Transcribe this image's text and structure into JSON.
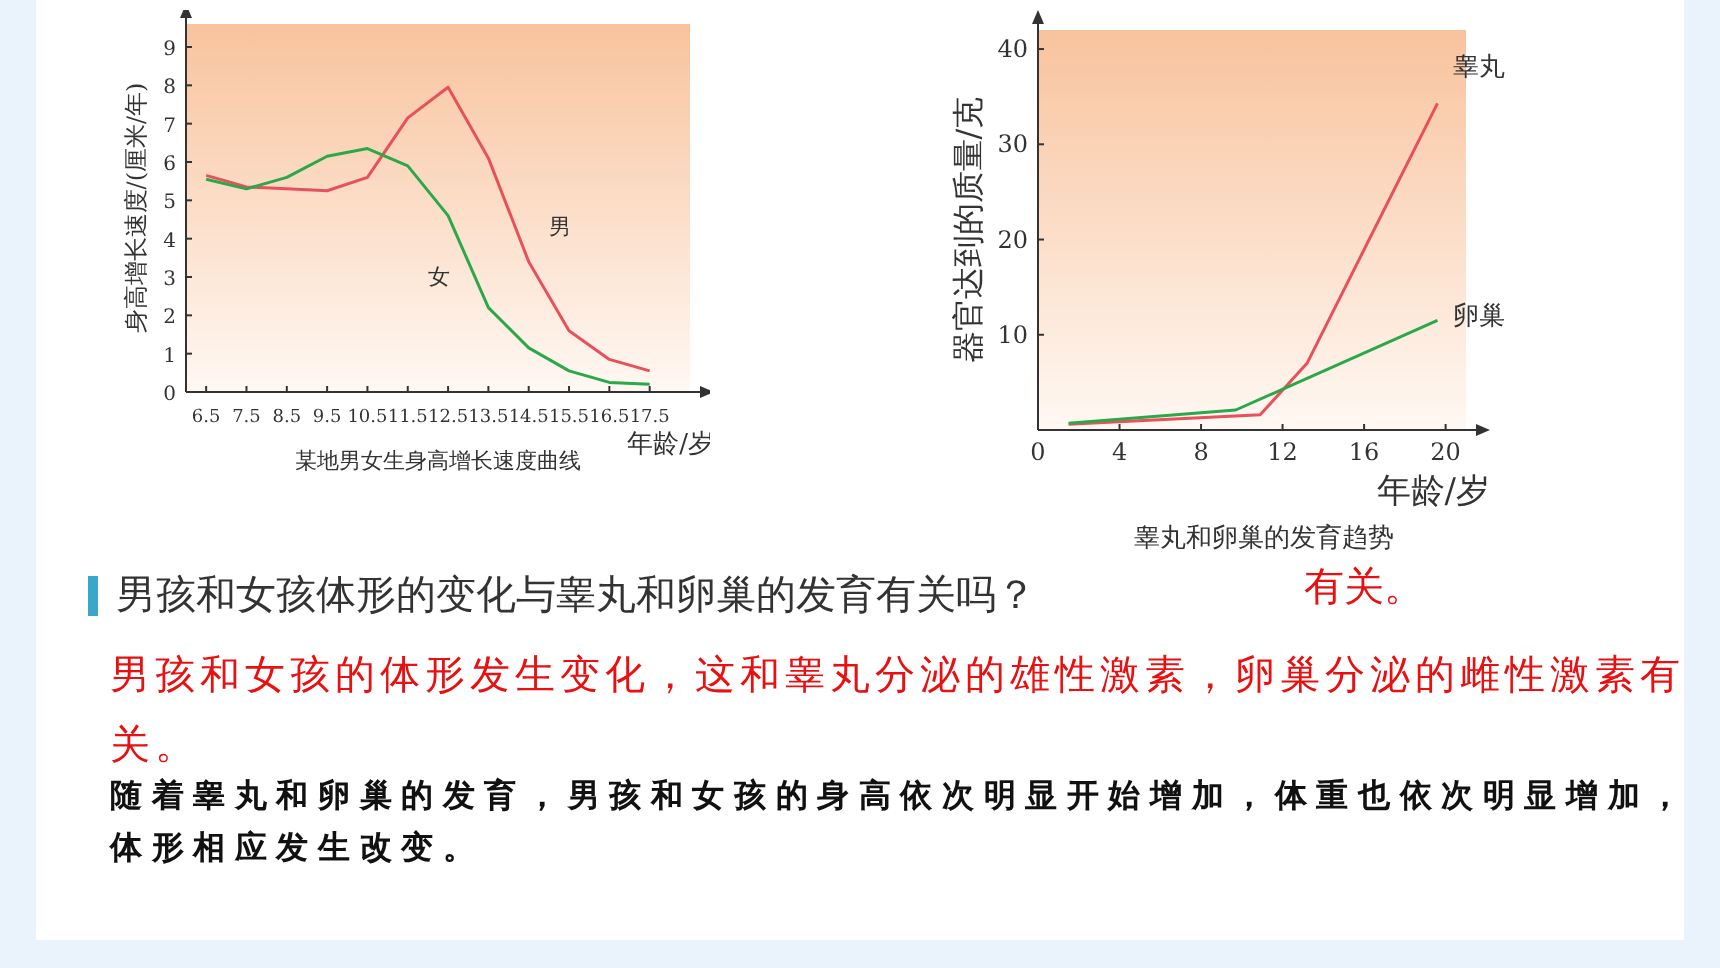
{
  "chart_data": [
    {
      "type": "line",
      "title": "某地男女生身高增长速度曲线",
      "xlabel": "年龄/岁",
      "ylabel": "身高增长速度/(厘米/年)",
      "x": [
        6.5,
        7.5,
        8.5,
        9.5,
        10.5,
        11.5,
        12.5,
        13.5,
        14.5,
        15.5,
        16.5,
        17.5
      ],
      "xlim": [
        6.0,
        18.5
      ],
      "xticks": [
        6.5,
        7.5,
        8.5,
        9.5,
        10.5,
        11.5,
        12.5,
        13.5,
        14.5,
        15.5,
        16.5,
        17.5
      ],
      "ylim": [
        0,
        9.6
      ],
      "yticks": [
        0,
        1,
        2,
        3,
        4,
        5,
        6,
        7,
        8,
        9
      ],
      "grid": false,
      "marker": "none",
      "series": [
        {
          "name": "男",
          "color": "#e8505b",
          "values": [
            5.65,
            5.35,
            5.3,
            5.25,
            5.6,
            7.15,
            7.95,
            6.1,
            3.4,
            1.6,
            0.85,
            0.55
          ]
        },
        {
          "name": "女",
          "color": "#2aa84a",
          "values": [
            5.55,
            5.3,
            5.6,
            6.15,
            6.35,
            5.9,
            4.6,
            2.2,
            1.15,
            0.55,
            0.25,
            0.2
          ]
        }
      ]
    },
    {
      "type": "line",
      "title": "睾丸和卵巢的发育趋势",
      "xlabel": "年龄/岁",
      "ylabel": "器官达到的质量/克",
      "xlim": [
        0,
        21
      ],
      "xticks": [
        0,
        4,
        8,
        12,
        16,
        20
      ],
      "ylim": [
        0,
        42
      ],
      "yticks": [
        10,
        20,
        30,
        40
      ],
      "grid": false,
      "marker": "none",
      "series": [
        {
          "name": "睾丸",
          "color": "#e8505b",
          "x": [
            1.5,
            10.9,
            13.2,
            19.6
          ],
          "values": [
            0.6,
            1.6,
            7,
            34.3
          ]
        },
        {
          "name": "卵巢",
          "color": "#2aa84a",
          "x": [
            1.5,
            9.7,
            19.6
          ],
          "values": [
            0.7,
            2.1,
            11.5
          ]
        }
      ]
    },
    {
      "type": "other",
      "annotations": [
        "男孩和女孩体形的变化与睾丸和卵巢的发育有关吗？",
        "有关。",
        "男孩和女孩的体形发生变化，这和睾丸分泌的雄性激素，卵巢分泌的雌性激素有关。",
        "随着睾丸和卵巢的发育，男孩和女孩的身高依次明显开始增加，体重也依次明显增加，体形相应发生改变。"
      ]
    }
  ]
}
